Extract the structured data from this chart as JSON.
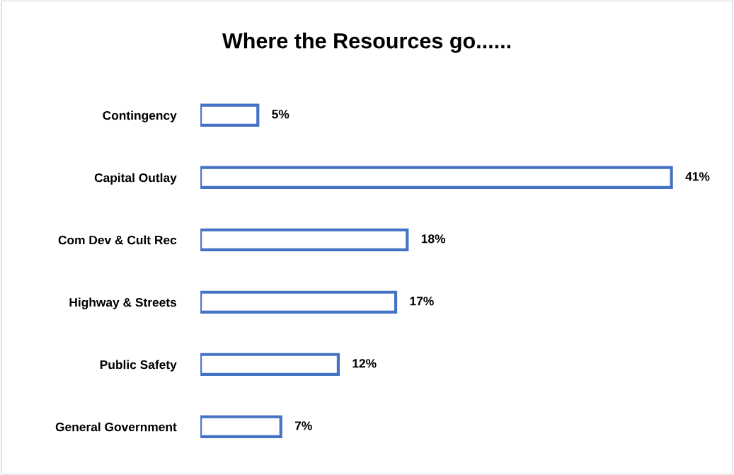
{
  "chart_data": {
    "type": "bar",
    "orientation": "horizontal",
    "title": "Where the Resources go......",
    "categories": [
      "Contingency",
      "Capital Outlay",
      "Com Dev & Cult Rec",
      "Highway & Streets",
      "Public Safety",
      "General Government"
    ],
    "values": [
      5,
      41,
      18,
      17,
      12,
      7
    ],
    "value_labels": [
      "5%",
      "41%",
      "18%",
      "17%",
      "12%",
      "7%"
    ],
    "color": "#4472c4",
    "tick_labels": "y",
    "grid": false,
    "legend": false
  }
}
